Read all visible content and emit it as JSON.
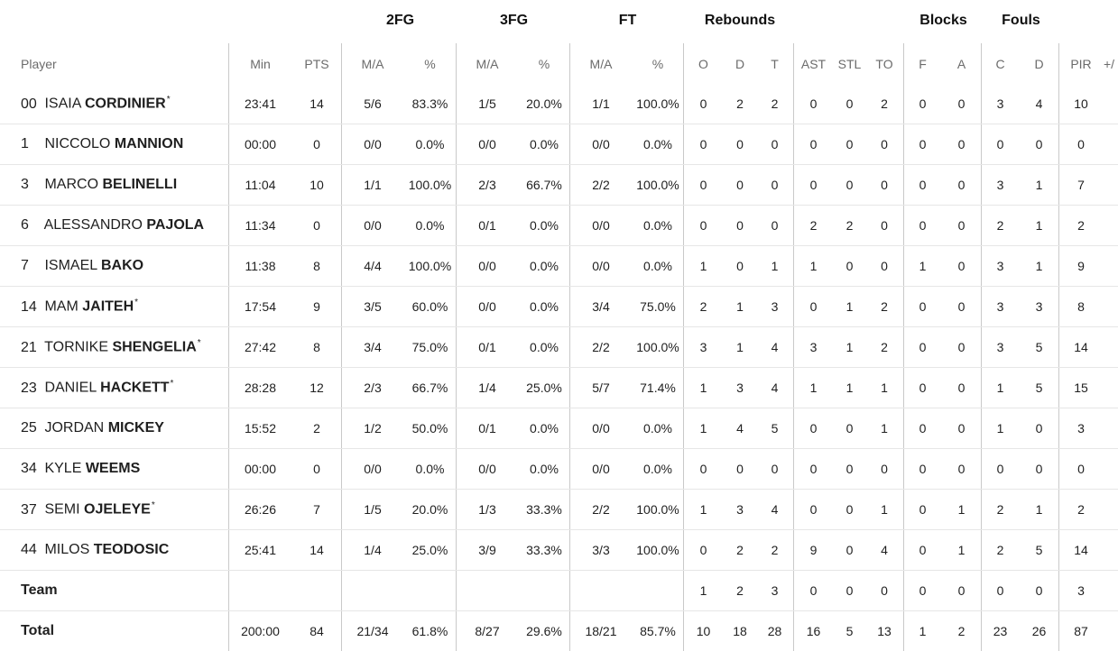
{
  "groups": {
    "fg2": "2FG",
    "fg3": "3FG",
    "ft": "FT",
    "rebounds": "Rebounds",
    "blocks": "Blocks",
    "fouls": "Fouls"
  },
  "headers": {
    "player": "Player",
    "min": "Min",
    "pts": "PTS",
    "fg2_ma": "M/A",
    "fg2_pct": "%",
    "fg3_ma": "M/A",
    "fg3_pct": "%",
    "ft_ma": "M/A",
    "ft_pct": "%",
    "reb_o": "O",
    "reb_d": "D",
    "reb_t": "T",
    "ast": "AST",
    "stl": "STL",
    "to": "TO",
    "blk_f": "F",
    "blk_a": "A",
    "foul_c": "C",
    "foul_d": "D",
    "pir": "PIR",
    "pm": "+/"
  },
  "players": [
    {
      "num": "00",
      "first": "ISAIA",
      "last": "CORDINIER",
      "star": "*",
      "min": "23:41",
      "pts": "14",
      "fg2_ma": "5/6",
      "fg2_pct": "83.3%",
      "fg3_ma": "1/5",
      "fg3_pct": "20.0%",
      "ft_ma": "1/1",
      "ft_pct": "100.0%",
      "o": "0",
      "d": "2",
      "t": "2",
      "ast": "0",
      "stl": "0",
      "to": "2",
      "bf": "0",
      "ba": "0",
      "fc": "3",
      "fd": "4",
      "pir": "10"
    },
    {
      "num": "1",
      "first": "NICCOLO",
      "last": "MANNION",
      "star": "",
      "min": "00:00",
      "pts": "0",
      "fg2_ma": "0/0",
      "fg2_pct": "0.0%",
      "fg3_ma": "0/0",
      "fg3_pct": "0.0%",
      "ft_ma": "0/0",
      "ft_pct": "0.0%",
      "o": "0",
      "d": "0",
      "t": "0",
      "ast": "0",
      "stl": "0",
      "to": "0",
      "bf": "0",
      "ba": "0",
      "fc": "0",
      "fd": "0",
      "pir": "0"
    },
    {
      "num": "3",
      "first": "MARCO",
      "last": "BELINELLI",
      "star": "",
      "min": "11:04",
      "pts": "10",
      "fg2_ma": "1/1",
      "fg2_pct": "100.0%",
      "fg3_ma": "2/3",
      "fg3_pct": "66.7%",
      "ft_ma": "2/2",
      "ft_pct": "100.0%",
      "o": "0",
      "d": "0",
      "t": "0",
      "ast": "0",
      "stl": "0",
      "to": "0",
      "bf": "0",
      "ba": "0",
      "fc": "3",
      "fd": "1",
      "pir": "7"
    },
    {
      "num": "6",
      "first": "ALESSANDRO",
      "last": "PAJOLA",
      "star": "",
      "min": "11:34",
      "pts": "0",
      "fg2_ma": "0/0",
      "fg2_pct": "0.0%",
      "fg3_ma": "0/1",
      "fg3_pct": "0.0%",
      "ft_ma": "0/0",
      "ft_pct": "0.0%",
      "o": "0",
      "d": "0",
      "t": "0",
      "ast": "2",
      "stl": "2",
      "to": "0",
      "bf": "0",
      "ba": "0",
      "fc": "2",
      "fd": "1",
      "pir": "2"
    },
    {
      "num": "7",
      "first": "ISMAEL",
      "last": "BAKO",
      "star": "",
      "min": "11:38",
      "pts": "8",
      "fg2_ma": "4/4",
      "fg2_pct": "100.0%",
      "fg3_ma": "0/0",
      "fg3_pct": "0.0%",
      "ft_ma": "0/0",
      "ft_pct": "0.0%",
      "o": "1",
      "d": "0",
      "t": "1",
      "ast": "1",
      "stl": "0",
      "to": "0",
      "bf": "1",
      "ba": "0",
      "fc": "3",
      "fd": "1",
      "pir": "9"
    },
    {
      "num": "14",
      "first": "MAM",
      "last": "JAITEH",
      "star": "*",
      "min": "17:54",
      "pts": "9",
      "fg2_ma": "3/5",
      "fg2_pct": "60.0%",
      "fg3_ma": "0/0",
      "fg3_pct": "0.0%",
      "ft_ma": "3/4",
      "ft_pct": "75.0%",
      "o": "2",
      "d": "1",
      "t": "3",
      "ast": "0",
      "stl": "1",
      "to": "2",
      "bf": "0",
      "ba": "0",
      "fc": "3",
      "fd": "3",
      "pir": "8"
    },
    {
      "num": "21",
      "first": "TORNIKE",
      "last": "SHENGELIA",
      "star": "*",
      "min": "27:42",
      "pts": "8",
      "fg2_ma": "3/4",
      "fg2_pct": "75.0%",
      "fg3_ma": "0/1",
      "fg3_pct": "0.0%",
      "ft_ma": "2/2",
      "ft_pct": "100.0%",
      "o": "3",
      "d": "1",
      "t": "4",
      "ast": "3",
      "stl": "1",
      "to": "2",
      "bf": "0",
      "ba": "0",
      "fc": "3",
      "fd": "5",
      "pir": "14"
    },
    {
      "num": "23",
      "first": "DANIEL",
      "last": "HACKETT",
      "star": "*",
      "min": "28:28",
      "pts": "12",
      "fg2_ma": "2/3",
      "fg2_pct": "66.7%",
      "fg3_ma": "1/4",
      "fg3_pct": "25.0%",
      "ft_ma": "5/7",
      "ft_pct": "71.4%",
      "o": "1",
      "d": "3",
      "t": "4",
      "ast": "1",
      "stl": "1",
      "to": "1",
      "bf": "0",
      "ba": "0",
      "fc": "1",
      "fd": "5",
      "pir": "15"
    },
    {
      "num": "25",
      "first": "JORDAN",
      "last": "MICKEY",
      "star": "",
      "min": "15:52",
      "pts": "2",
      "fg2_ma": "1/2",
      "fg2_pct": "50.0%",
      "fg3_ma": "0/1",
      "fg3_pct": "0.0%",
      "ft_ma": "0/0",
      "ft_pct": "0.0%",
      "o": "1",
      "d": "4",
      "t": "5",
      "ast": "0",
      "stl": "0",
      "to": "1",
      "bf": "0",
      "ba": "0",
      "fc": "1",
      "fd": "0",
      "pir": "3"
    },
    {
      "num": "34",
      "first": "KYLE",
      "last": "WEEMS",
      "star": "",
      "min": "00:00",
      "pts": "0",
      "fg2_ma": "0/0",
      "fg2_pct": "0.0%",
      "fg3_ma": "0/0",
      "fg3_pct": "0.0%",
      "ft_ma": "0/0",
      "ft_pct": "0.0%",
      "o": "0",
      "d": "0",
      "t": "0",
      "ast": "0",
      "stl": "0",
      "to": "0",
      "bf": "0",
      "ba": "0",
      "fc": "0",
      "fd": "0",
      "pir": "0"
    },
    {
      "num": "37",
      "first": "SEMI",
      "last": "OJELEYE",
      "star": "*",
      "min": "26:26",
      "pts": "7",
      "fg2_ma": "1/5",
      "fg2_pct": "20.0%",
      "fg3_ma": "1/3",
      "fg3_pct": "33.3%",
      "ft_ma": "2/2",
      "ft_pct": "100.0%",
      "o": "1",
      "d": "3",
      "t": "4",
      "ast": "0",
      "stl": "0",
      "to": "1",
      "bf": "0",
      "ba": "1",
      "fc": "2",
      "fd": "1",
      "pir": "2"
    },
    {
      "num": "44",
      "first": "MILOS",
      "last": "TEODOSIC",
      "star": "",
      "min": "25:41",
      "pts": "14",
      "fg2_ma": "1/4",
      "fg2_pct": "25.0%",
      "fg3_ma": "3/9",
      "fg3_pct": "33.3%",
      "ft_ma": "3/3",
      "ft_pct": "100.0%",
      "o": "0",
      "d": "2",
      "t": "2",
      "ast": "9",
      "stl": "0",
      "to": "4",
      "bf": "0",
      "ba": "1",
      "fc": "2",
      "fd": "5",
      "pir": "14"
    }
  ],
  "team": {
    "label": "Team",
    "o": "1",
    "d": "2",
    "t": "3",
    "ast": "0",
    "stl": "0",
    "to": "0",
    "bf": "0",
    "ba": "0",
    "fc": "0",
    "fd": "0",
    "pir": "3"
  },
  "total": {
    "label": "Total",
    "min": "200:00",
    "pts": "84",
    "fg2_ma": "21/34",
    "fg2_pct": "61.8%",
    "fg3_ma": "8/27",
    "fg3_pct": "29.6%",
    "ft_ma": "18/21",
    "ft_pct": "85.7%",
    "o": "10",
    "d": "18",
    "t": "28",
    "ast": "16",
    "stl": "5",
    "to": "13",
    "bf": "1",
    "ba": "2",
    "fc": "23",
    "fd": "26",
    "pir": "87"
  }
}
